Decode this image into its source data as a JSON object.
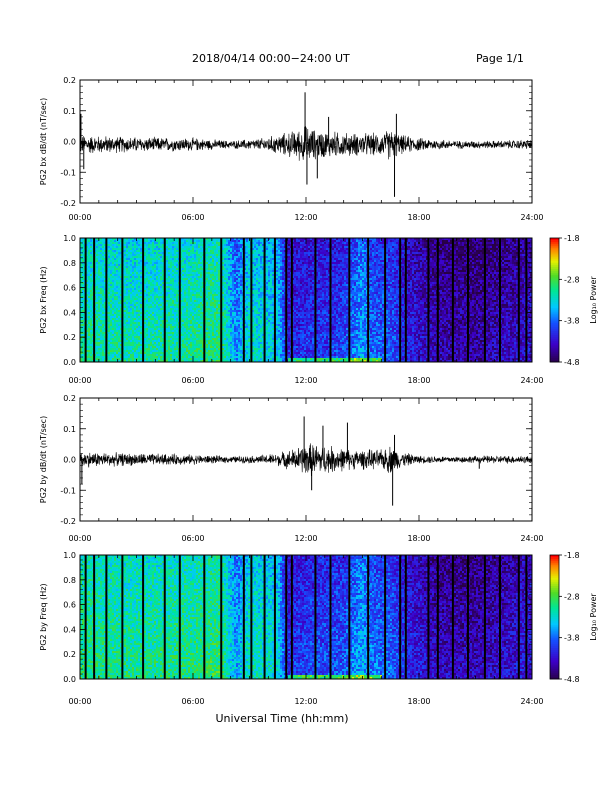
{
  "header": {
    "title": "2018/04/14  00:00−24:00 UT",
    "page": "Page 1/1"
  },
  "x_axis_label": "Universal Time (hh:mm)",
  "chart_data": [
    {
      "type": "line",
      "ylabel": "PG2 bx dB/dt (nT/sec)",
      "xlim": [
        0,
        24
      ],
      "ylim": [
        -0.2,
        0.2
      ],
      "x_ticks": [
        "00:00",
        "06:00",
        "12:00",
        "18:00",
        "24:00"
      ],
      "y_ticks": [
        "-0.2",
        "-0.1",
        "0.0",
        "0.1",
        "0.2"
      ],
      "baseline": -0.01,
      "envelope_hours": [
        0,
        2,
        4,
        6,
        8,
        9.5,
        10.5,
        11.5,
        12,
        12.5,
        13.5,
        14.5,
        16,
        16.5,
        17,
        18,
        20,
        22,
        24
      ],
      "envelope_amp": [
        0.03,
        0.025,
        0.022,
        0.02,
        0.012,
        0.018,
        0.03,
        0.045,
        0.06,
        0.045,
        0.04,
        0.035,
        0.035,
        0.05,
        0.03,
        0.02,
        0.012,
        0.012,
        0.015
      ],
      "spikes": [
        {
          "t": 0.05,
          "v": 0.09
        },
        {
          "t": 0.2,
          "v": -0.09
        },
        {
          "t": 11.95,
          "v": 0.16
        },
        {
          "t": 12.05,
          "v": -0.14
        },
        {
          "t": 12.6,
          "v": -0.12
        },
        {
          "t": 16.7,
          "v": -0.18
        },
        {
          "t": 16.8,
          "v": 0.09
        },
        {
          "t": 13.2,
          "v": 0.08
        }
      ]
    },
    {
      "type": "heatmap",
      "ylabel": "PG2 bx Freq (Hz)",
      "xlim": [
        0,
        24
      ],
      "ylim": [
        0.0,
        1.0
      ],
      "x_ticks": [
        "00:00",
        "06:00",
        "12:00",
        "18:00",
        "24:00"
      ],
      "y_ticks": [
        "0.0",
        "0.2",
        "0.4",
        "0.6",
        "0.8",
        "1.0"
      ],
      "colorbar": {
        "label": "Log₁₀ Power",
        "range": [
          -4.8,
          -1.8
        ],
        "ticks": [
          "-1.8",
          "-2.8",
          "-3.8",
          "-4.8"
        ]
      },
      "gap_hours": [
        0.3,
        0.75,
        1.4,
        2.25,
        3.35,
        4.5,
        5.3,
        6.6,
        7.5,
        8.7,
        9.1,
        9.8,
        10.35,
        10.95,
        11.25,
        12.5,
        13.3,
        14.3,
        15.3,
        16.2,
        17.0,
        17.3,
        18.5,
        19.0,
        19.8,
        20.6,
        21.5,
        22.3,
        23.3,
        23.7
      ],
      "level_hours": [
        0,
        3,
        6,
        7.5,
        8.3,
        9,
        10.5,
        11,
        12,
        14,
        15,
        15.5,
        16.5,
        17.5,
        19,
        21,
        24
      ],
      "level_values": [
        0.45,
        0.48,
        0.45,
        0.42,
        0.65,
        0.5,
        0.55,
        0.8,
        0.78,
        0.75,
        0.62,
        0.7,
        0.72,
        0.82,
        0.9,
        0.92,
        0.85
      ]
    },
    {
      "type": "line",
      "ylabel": "PG2 by dB/dt (nT/sec)",
      "xlim": [
        0,
        24
      ],
      "ylim": [
        -0.2,
        0.2
      ],
      "x_ticks": [
        "00:00",
        "06:00",
        "12:00",
        "18:00",
        "24:00"
      ],
      "y_ticks": [
        "-0.2",
        "-0.1",
        "0.0",
        "0.1",
        "0.2"
      ],
      "baseline": 0.0,
      "envelope_hours": [
        0,
        2,
        4,
        6,
        8,
        9.5,
        10.5,
        11.5,
        12,
        12.5,
        13.5,
        14.5,
        16,
        16.5,
        17,
        18,
        20,
        22,
        24
      ],
      "envelope_amp": [
        0.025,
        0.02,
        0.018,
        0.015,
        0.01,
        0.012,
        0.02,
        0.035,
        0.05,
        0.05,
        0.04,
        0.03,
        0.03,
        0.045,
        0.025,
        0.012,
        0.01,
        0.012,
        0.012
      ],
      "spikes": [
        {
          "t": 0.1,
          "v": -0.08
        },
        {
          "t": 11.9,
          "v": 0.14
        },
        {
          "t": 12.3,
          "v": -0.1
        },
        {
          "t": 12.9,
          "v": 0.11
        },
        {
          "t": 14.2,
          "v": 0.12
        },
        {
          "t": 16.6,
          "v": -0.15
        },
        {
          "t": 16.7,
          "v": 0.08
        },
        {
          "t": 21.2,
          "v": -0.03
        }
      ]
    },
    {
      "type": "heatmap",
      "ylabel": "PG2 by Freq (Hz)",
      "xlim": [
        0,
        24
      ],
      "ylim": [
        0.0,
        1.0
      ],
      "x_ticks": [
        "00:00",
        "06:00",
        "12:00",
        "18:00",
        "24:00"
      ],
      "y_ticks": [
        "0.0",
        "0.2",
        "0.4",
        "0.6",
        "0.8",
        "1.0"
      ],
      "colorbar": {
        "label": "Log₁₀ Power",
        "range": [
          -4.8,
          -1.8
        ],
        "ticks": [
          "-1.8",
          "-2.8",
          "-3.8",
          "-4.8"
        ]
      },
      "gap_hours": [
        0.3,
        0.75,
        1.4,
        2.25,
        3.35,
        4.5,
        5.3,
        6.6,
        7.5,
        8.7,
        9.1,
        9.8,
        10.35,
        10.95,
        11.25,
        12.5,
        13.3,
        14.3,
        15.3,
        16.2,
        17.0,
        17.3,
        18.5,
        19.0,
        19.8,
        20.6,
        21.5,
        22.3,
        23.3,
        23.7
      ],
      "level_hours": [
        0,
        3,
        6,
        7.5,
        8.3,
        9,
        10.5,
        11,
        12,
        14,
        15,
        15.5,
        16.5,
        17.5,
        19,
        21,
        24
      ],
      "level_values": [
        0.42,
        0.45,
        0.43,
        0.4,
        0.62,
        0.48,
        0.52,
        0.78,
        0.75,
        0.72,
        0.6,
        0.68,
        0.7,
        0.8,
        0.88,
        0.9,
        0.82
      ]
    }
  ]
}
